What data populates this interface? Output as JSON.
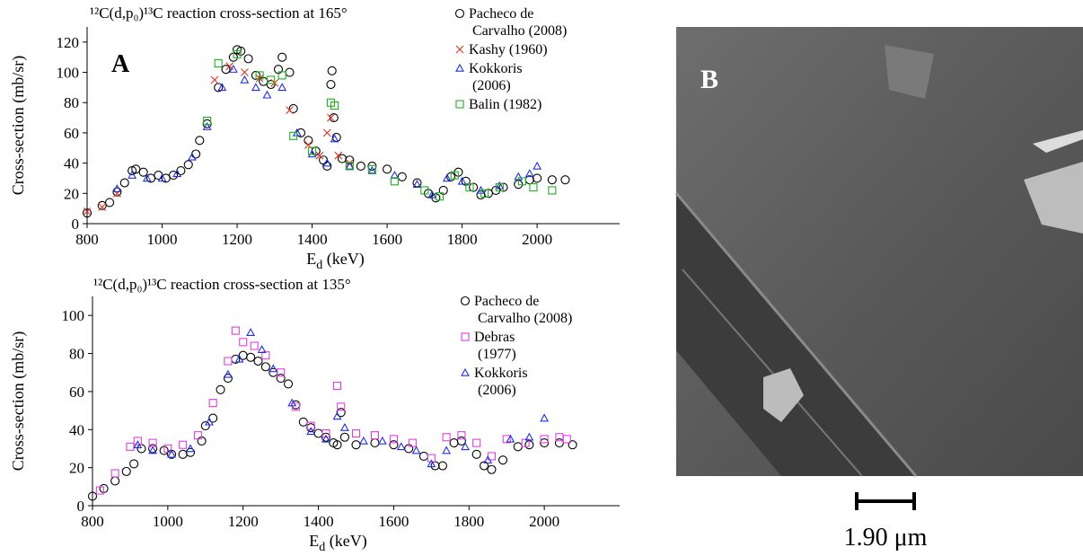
{
  "chart_data": [
    {
      "type": "scatter",
      "title": "¹²C(d,p₀)¹³C reaction cross-section at 165°",
      "panel_label": "A",
      "xlabel": "Ed (keV)",
      "ylabel": "Cross-section (mb/sr)",
      "xlim": [
        800,
        2220
      ],
      "xticks": [
        800,
        1000,
        1200,
        1400,
        1600,
        1800,
        2000
      ],
      "ylim": [
        0,
        130
      ],
      "yticks": [
        0,
        20,
        40,
        60,
        80,
        100,
        120
      ],
      "series": [
        {
          "name": "Pacheco de Carvalho (2008)",
          "color": "#000000",
          "marker": "circle",
          "x": [
            800,
            840,
            860,
            880,
            900,
            920,
            930,
            950,
            970,
            990,
            1010,
            1030,
            1050,
            1070,
            1090,
            1100,
            1120,
            1150,
            1170,
            1190,
            1200,
            1210,
            1230,
            1250,
            1270,
            1290,
            1310,
            1320,
            1340,
            1350,
            1370,
            1390,
            1410,
            1430,
            1440,
            1450,
            1453,
            1458,
            1465,
            1480,
            1500,
            1530,
            1560,
            1600,
            1640,
            1680,
            1710,
            1730,
            1750,
            1770,
            1790,
            1810,
            1830,
            1850,
            1870,
            1890,
            1910,
            1950,
            1980,
            2000,
            2040,
            2075
          ],
          "values": [
            7,
            12,
            14,
            21,
            27,
            35,
            36,
            34,
            30,
            32,
            30,
            32,
            35,
            39,
            46,
            55,
            66,
            90,
            102,
            110,
            115,
            114,
            109,
            98,
            94,
            92,
            102,
            110,
            100,
            76,
            60,
            55,
            48,
            42,
            38,
            92,
            101,
            70,
            57,
            43,
            42,
            38,
            38,
            36,
            31,
            27,
            20,
            17,
            22,
            31,
            34,
            28,
            24,
            19,
            20,
            22,
            24,
            26,
            29,
            30,
            29,
            29
          ]
        },
        {
          "name": "Kashy (1960)",
          "color": "#e0301e",
          "marker": "cross",
          "x": [
            800,
            840,
            880,
            1140,
            1180,
            1220,
            1260,
            1300,
            1340,
            1390,
            1420,
            1440,
            1450,
            1470,
            1500
          ],
          "values": [
            8,
            11,
            20,
            95,
            104,
            100,
            96,
            93,
            75,
            52,
            45,
            60,
            70,
            45,
            40
          ]
        },
        {
          "name": "Kokkoris (2006)",
          "color": "#2030e0",
          "marker": "triangle",
          "x": [
            880,
            920,
            960,
            1000,
            1040,
            1080,
            1120,
            1160,
            1190,
            1220,
            1250,
            1280,
            1320,
            1360,
            1400,
            1440,
            1460,
            1500,
            1560,
            1620,
            1680,
            1720,
            1760,
            1800,
            1850,
            1900,
            1950,
            1980,
            2000
          ],
          "values": [
            23,
            32,
            30,
            30,
            33,
            44,
            64,
            90,
            102,
            95,
            90,
            85,
            90,
            60,
            46,
            40,
            56,
            38,
            35,
            32,
            26,
            19,
            30,
            28,
            22,
            25,
            31,
            33,
            38
          ]
        },
        {
          "name": "Balin (1982)",
          "color": "#20b020",
          "marker": "square",
          "x": [
            1120,
            1150,
            1200,
            1260,
            1290,
            1320,
            1350,
            1400,
            1450,
            1460,
            1500,
            1560,
            1620,
            1700,
            1740,
            1780,
            1820,
            1860,
            1900,
            1960,
            1990,
            2040
          ],
          "values": [
            68,
            106,
            112,
            98,
            95,
            98,
            58,
            48,
            80,
            78,
            38,
            36,
            28,
            22,
            18,
            32,
            24,
            20,
            24,
            28,
            24,
            22
          ]
        }
      ]
    },
    {
      "type": "scatter",
      "title": "¹²C(d,p₀)¹³C reaction cross-section at 135°",
      "xlabel": "Ed (keV)",
      "ylabel": "Cross-section (mb/sr)",
      "xlim": [
        800,
        2200
      ],
      "xticks": [
        800,
        1000,
        1200,
        1400,
        1600,
        1800,
        2000
      ],
      "ylim": [
        0,
        110
      ],
      "yticks": [
        0,
        20,
        40,
        60,
        80,
        100
      ],
      "series": [
        {
          "name": "Pacheco de Carvalho (2008)",
          "color": "#000000",
          "marker": "circle",
          "x": [
            800,
            830,
            860,
            890,
            910,
            930,
            960,
            990,
            1010,
            1040,
            1060,
            1090,
            1100,
            1120,
            1140,
            1160,
            1180,
            1200,
            1220,
            1240,
            1260,
            1280,
            1300,
            1320,
            1340,
            1360,
            1380,
            1400,
            1420,
            1440,
            1450,
            1460,
            1470,
            1500,
            1550,
            1600,
            1640,
            1680,
            1710,
            1730,
            1760,
            1780,
            1820,
            1840,
            1860,
            1890,
            1930,
            1960,
            2000,
            2040,
            2075
          ],
          "values": [
            5,
            9,
            13,
            18,
            22,
            30,
            30,
            29,
            27,
            27,
            28,
            34,
            42,
            46,
            61,
            67,
            77,
            79,
            78,
            76,
            73,
            70,
            67,
            64,
            53,
            44,
            41,
            38,
            36,
            33,
            32,
            49,
            36,
            32,
            33,
            32,
            30,
            26,
            21,
            21,
            33,
            34,
            27,
            21,
            19,
            24,
            31,
            32,
            33,
            33,
            32
          ]
        },
        {
          "name": "Debras (1977)",
          "color": "#e040e0",
          "marker": "square",
          "x": [
            820,
            860,
            900,
            920,
            960,
            1000,
            1040,
            1080,
            1120,
            1160,
            1180,
            1200,
            1230,
            1260,
            1300,
            1340,
            1380,
            1420,
            1450,
            1460,
            1500,
            1550,
            1600,
            1650,
            1700,
            1740,
            1780,
            1820,
            1860,
            1900,
            1950,
            2000,
            2040,
            2060
          ],
          "values": [
            8,
            17,
            31,
            34,
            33,
            30,
            32,
            37,
            54,
            76,
            92,
            86,
            84,
            79,
            70,
            52,
            42,
            38,
            63,
            52,
            38,
            37,
            35,
            33,
            25,
            36,
            37,
            33,
            26,
            35,
            33,
            35,
            36,
            35
          ]
        },
        {
          "name": "Kokkoris (2006)",
          "color": "#2030e0",
          "marker": "triangle",
          "x": [
            920,
            960,
            1010,
            1060,
            1110,
            1160,
            1190,
            1220,
            1250,
            1280,
            1330,
            1380,
            1420,
            1450,
            1470,
            1520,
            1570,
            1620,
            1660,
            1700,
            1740,
            1790,
            1850,
            1910,
            1960,
            2000
          ],
          "values": [
            32,
            29,
            27,
            30,
            44,
            69,
            77,
            91,
            82,
            72,
            54,
            39,
            35,
            47,
            41,
            34,
            34,
            31,
            29,
            22,
            29,
            31,
            24,
            35,
            36,
            46
          ]
        }
      ]
    }
  ],
  "image_panel": {
    "label": "B",
    "scale_bar": "1.90 μm"
  }
}
